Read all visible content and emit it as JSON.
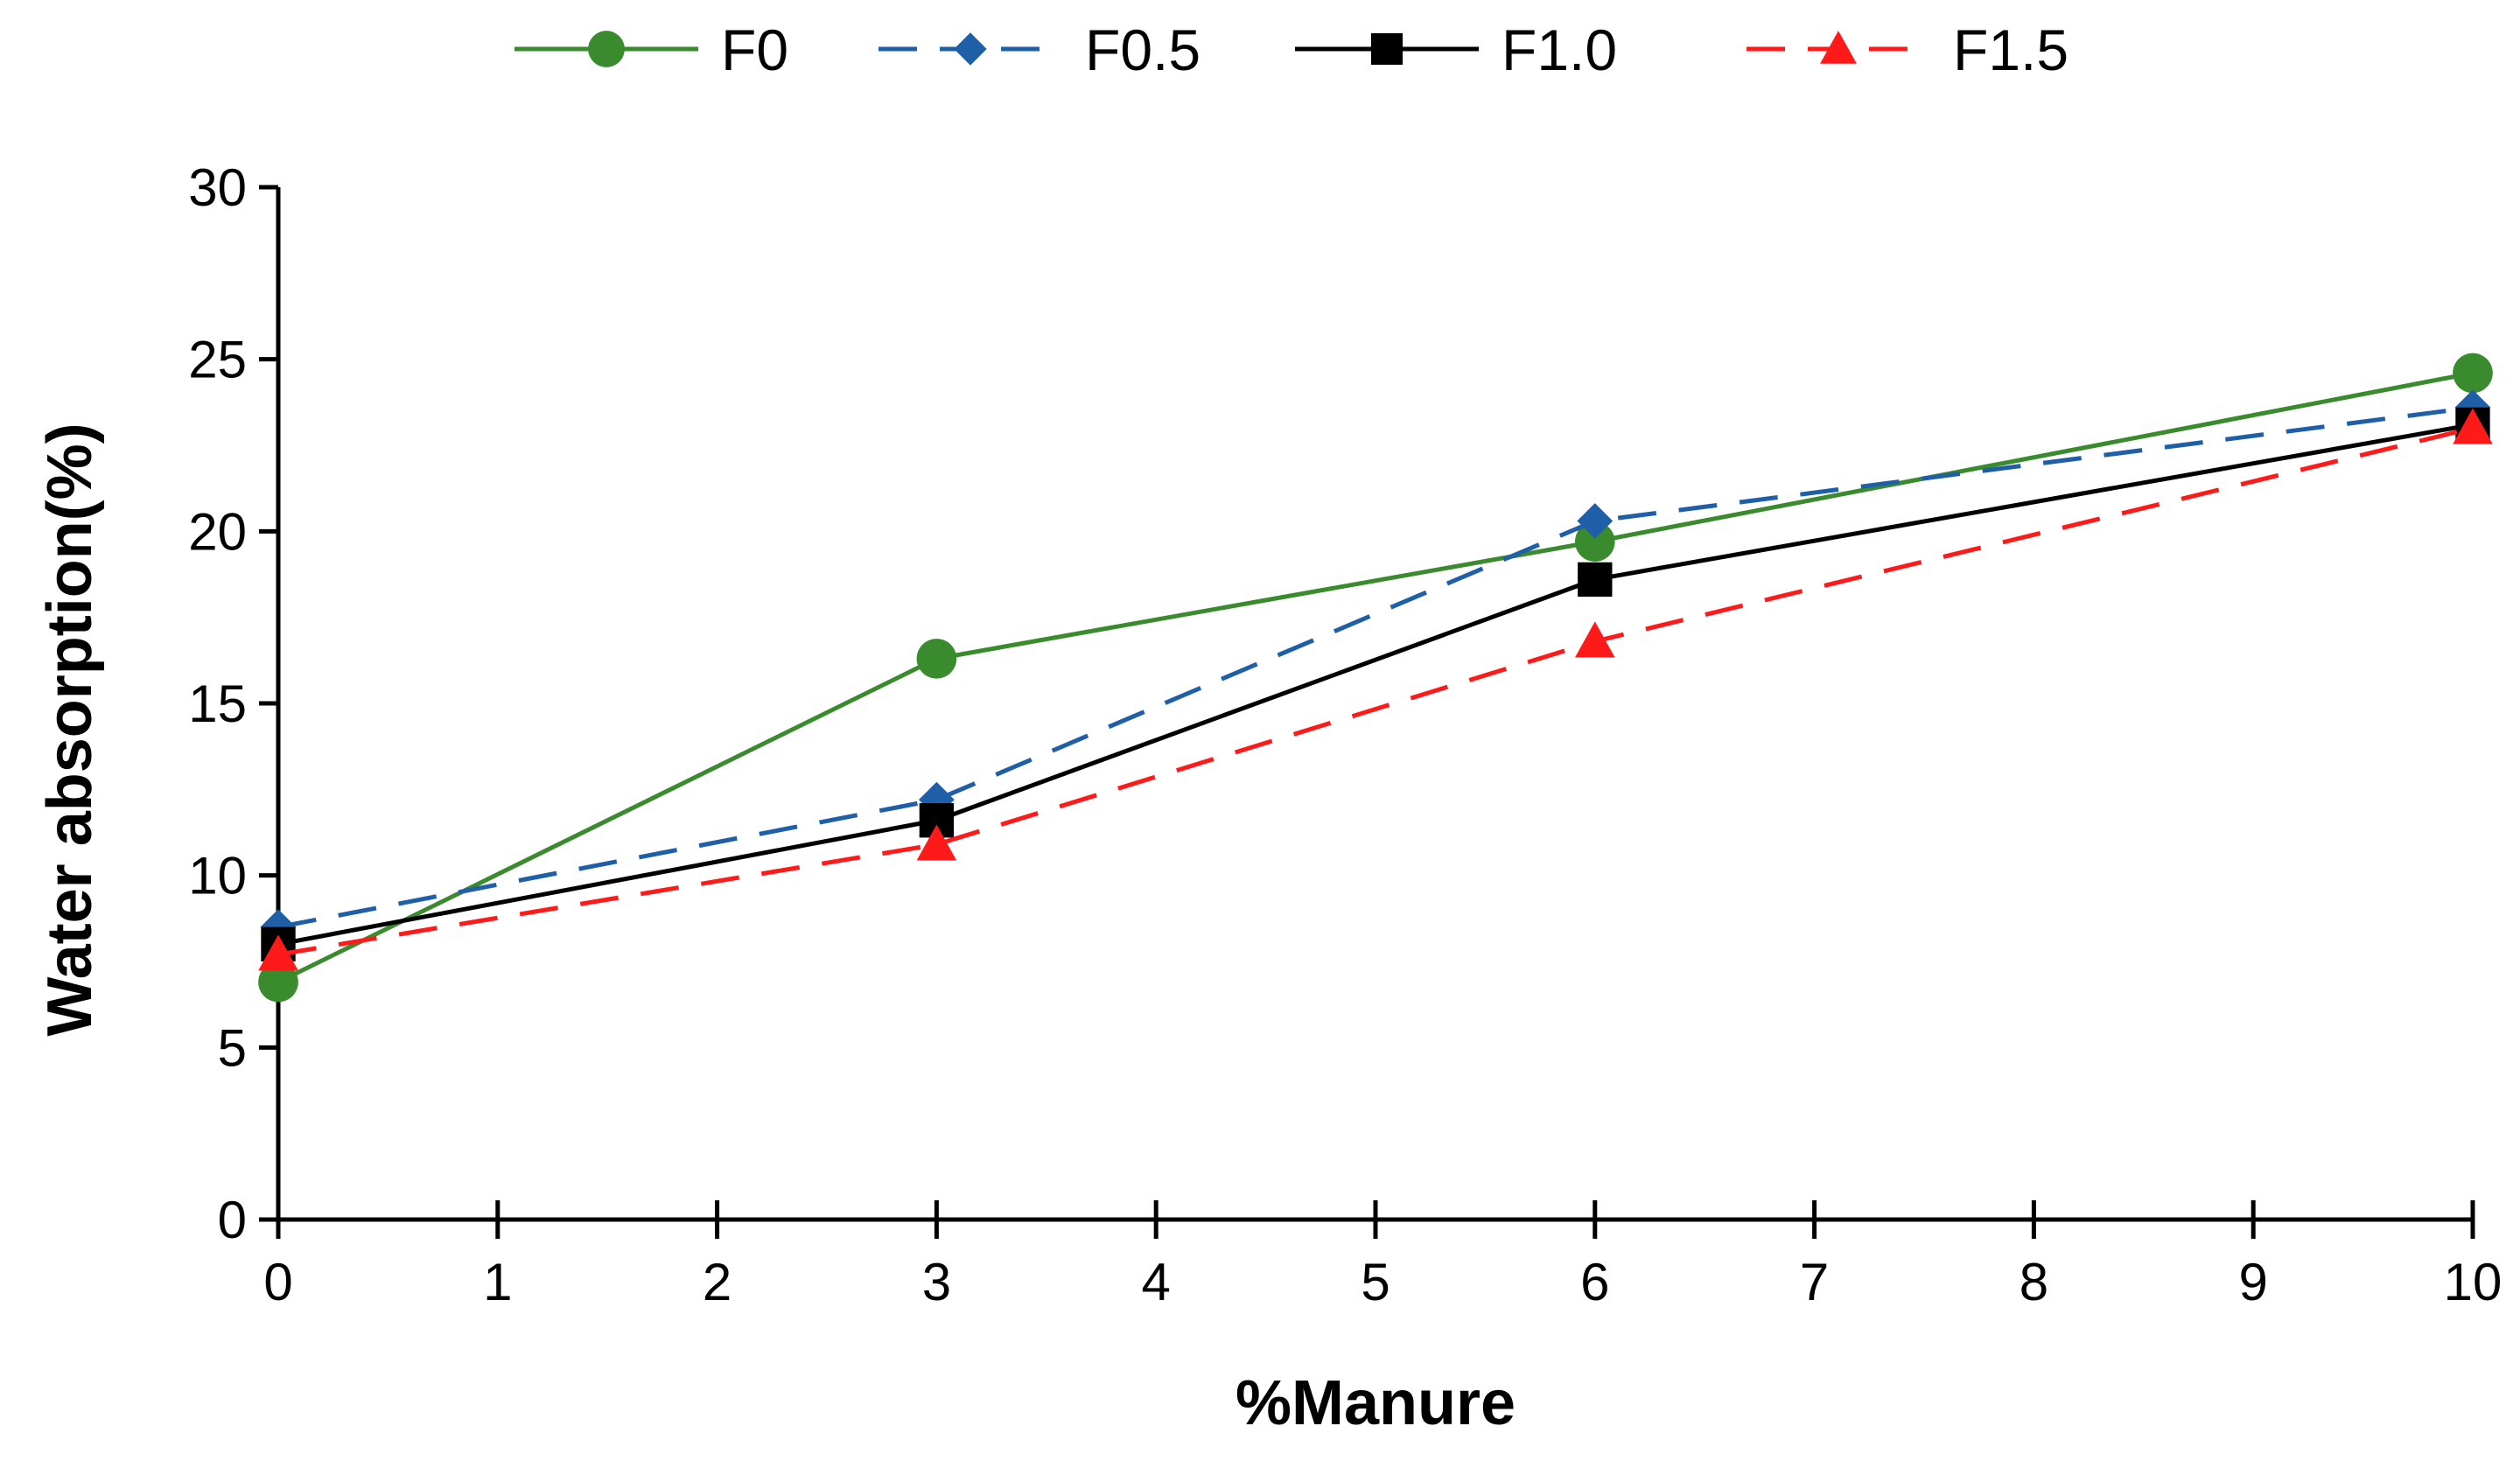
{
  "chart_data": {
    "type": "line",
    "title": "",
    "xlabel": "%Manure",
    "ylabel": "Water absorption(%)",
    "xlim": [
      0,
      10
    ],
    "ylim": [
      0,
      30
    ],
    "xticks": [
      0,
      1,
      2,
      3,
      4,
      5,
      6,
      7,
      8,
      9,
      10
    ],
    "yticks": [
      0,
      5,
      10,
      15,
      20,
      25,
      30
    ],
    "grid": false,
    "legend_position": "top",
    "x": [
      0,
      3,
      6,
      10
    ],
    "series": [
      {
        "name": "F0",
        "values": [
          6.9,
          16.3,
          19.7,
          24.6
        ],
        "color": "#3a8a2e",
        "dash": "solid",
        "marker": "circle"
      },
      {
        "name": "F0.5",
        "values": [
          8.5,
          12.2,
          20.3,
          23.6
        ],
        "color": "#1f5fa8",
        "dash": "dashed",
        "marker": "diamond"
      },
      {
        "name": "F1.0",
        "values": [
          8.0,
          11.6,
          18.6,
          23.1
        ],
        "color": "#000000",
        "dash": "solid",
        "marker": "square"
      },
      {
        "name": "F1.5",
        "values": [
          7.7,
          10.9,
          16.8,
          23.0
        ],
        "color": "#ff1a1a",
        "dash": "dashed",
        "marker": "triangle"
      }
    ]
  }
}
